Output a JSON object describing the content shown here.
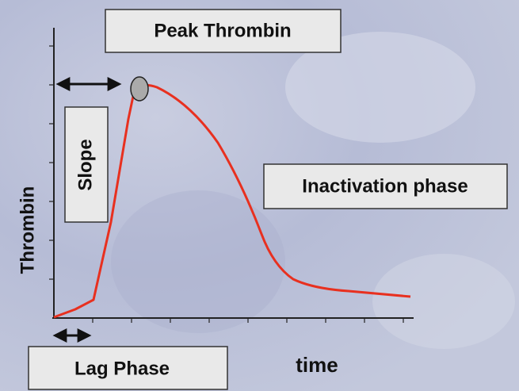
{
  "labels": {
    "peak": "Peak Thrombin",
    "slope": "Slope",
    "inactivation": "Inactivation phase",
    "lag": "Lag Phase",
    "x_axis": "time",
    "y_axis": "Thrombin"
  }
}
